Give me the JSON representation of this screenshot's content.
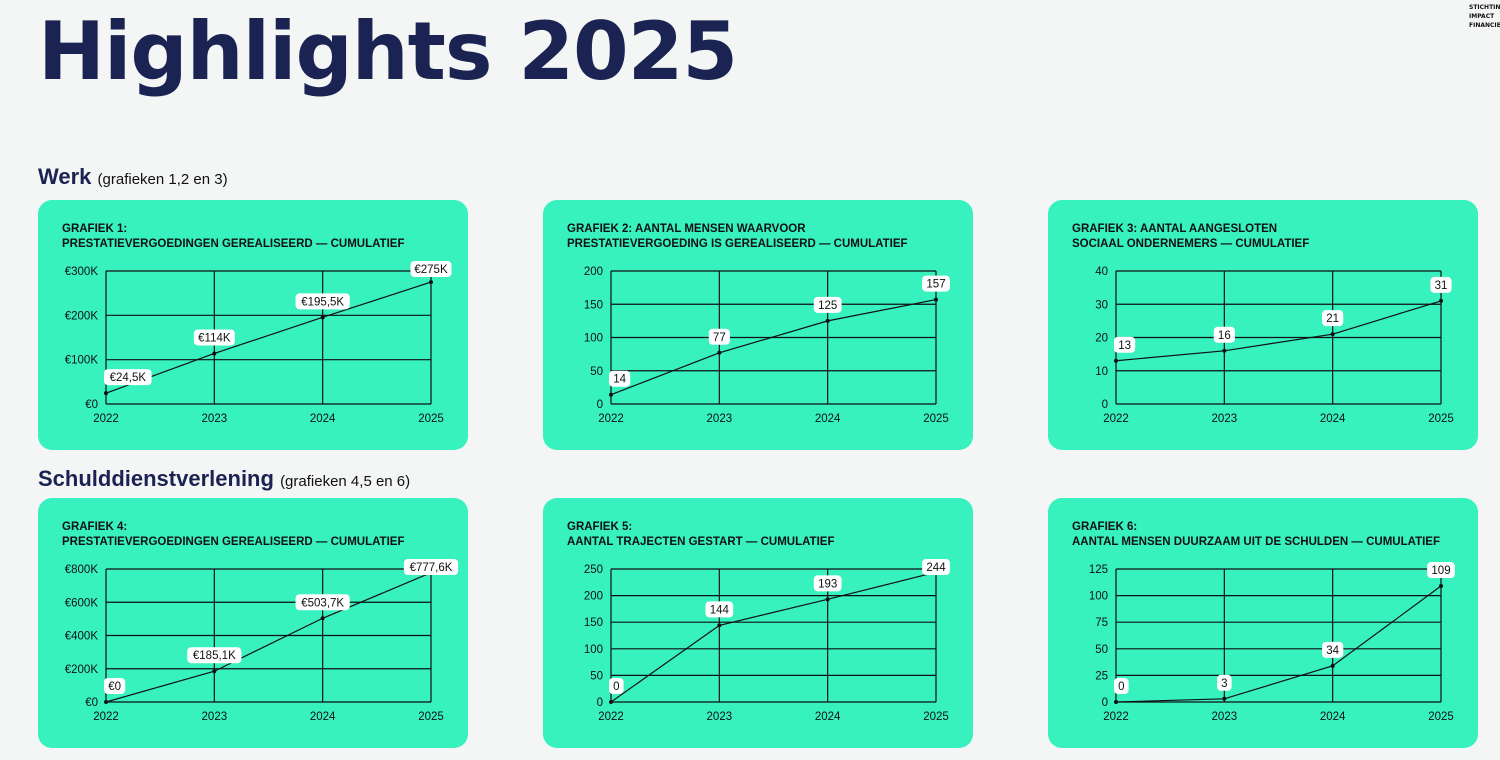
{
  "page": {
    "title": "Highlights 2025",
    "logo_lines": [
      "STICHTIN",
      "IMPACT",
      "FINANCIE"
    ]
  },
  "sections": [
    {
      "title": "Werk",
      "subtitle": "(grafieken 1,2 en 3)"
    },
    {
      "title": "Schulddienstverlening",
      "subtitle": "(grafieken 4,5 en 6)"
    }
  ],
  "chart_data": [
    {
      "type": "line",
      "title_lines": [
        "GRAFIEK 1:",
        "PRESTATIEVERGOEDINGEN GEREALISEERD — CUMULATIEF"
      ],
      "categories": [
        "2022",
        "2023",
        "2024",
        "2025"
      ],
      "values": [
        24.5,
        114,
        195.5,
        275
      ],
      "data_labels": [
        "€24,5K",
        "€114K",
        "€195,5K",
        "€275K"
      ],
      "y_ticks": [
        0,
        100,
        200,
        300
      ],
      "y_tick_labels": [
        "€0",
        "€100K",
        "€200K",
        "€300K"
      ],
      "ylim": [
        0,
        300
      ],
      "grid": true
    },
    {
      "type": "line",
      "title_lines": [
        "GRAFIEK 2: AANTAL MENSEN WAARVOOR",
        "PRESTATIEVERGOEDING IS GEREALISEERD — CUMULATIEF"
      ],
      "categories": [
        "2022",
        "2023",
        "2024",
        "2025"
      ],
      "values": [
        14,
        77,
        125,
        157
      ],
      "data_labels": [
        "14",
        "77",
        "125",
        "157"
      ],
      "y_ticks": [
        0,
        50,
        100,
        150,
        200
      ],
      "y_tick_labels": [
        "0",
        "50",
        "100",
        "150",
        "200"
      ],
      "ylim": [
        0,
        200
      ],
      "grid": true
    },
    {
      "type": "line",
      "title_lines": [
        "GRAFIEK 3: AANTAL AANGESLOTEN",
        "SOCIAAL ONDERNEMERS — CUMULATIEF"
      ],
      "categories": [
        "2022",
        "2023",
        "2024",
        "2025"
      ],
      "values": [
        13,
        16,
        21,
        31
      ],
      "data_labels": [
        "13",
        "16",
        "21",
        "31"
      ],
      "y_ticks": [
        0,
        10,
        20,
        30,
        40
      ],
      "y_tick_labels": [
        "0",
        "10",
        "20",
        "30",
        "40"
      ],
      "ylim": [
        0,
        40
      ],
      "grid": true
    },
    {
      "type": "line",
      "title_lines": [
        "GRAFIEK 4:",
        "PRESTATIEVERGOEDINGEN GEREALISEERD — CUMULATIEF"
      ],
      "categories": [
        "2022",
        "2023",
        "2024",
        "2025"
      ],
      "values": [
        0,
        185.1,
        503.7,
        777.6
      ],
      "data_labels": [
        "€0",
        "€185,1K",
        "€503,7K",
        "€777,6K"
      ],
      "y_ticks": [
        0,
        200,
        400,
        600,
        800
      ],
      "y_tick_labels": [
        "€0",
        "€200K",
        "€400K",
        "€600K",
        "€800K"
      ],
      "ylim": [
        0,
        800
      ],
      "grid": true
    },
    {
      "type": "line",
      "title_lines": [
        "GRAFIEK 5:",
        "AANTAL TRAJECTEN GESTART — CUMULATIEF"
      ],
      "categories": [
        "2022",
        "2023",
        "2024",
        "2025"
      ],
      "values": [
        0,
        144,
        193,
        244
      ],
      "data_labels": [
        "0",
        "144",
        "193",
        "244"
      ],
      "y_ticks": [
        0,
        50,
        100,
        150,
        200,
        250
      ],
      "y_tick_labels": [
        "0",
        "50",
        "100",
        "150",
        "200",
        "250"
      ],
      "ylim": [
        0,
        250
      ],
      "grid": true
    },
    {
      "type": "line",
      "title_lines": [
        "GRAFIEK 6:",
        "AANTAL MENSEN DUURZAAM UIT DE SCHULDEN — CUMULATIEF"
      ],
      "categories": [
        "2022",
        "2023",
        "2024",
        "2025"
      ],
      "values": [
        0,
        3,
        34,
        109
      ],
      "data_labels": [
        "0",
        "3",
        "34",
        "109"
      ],
      "y_ticks": [
        0,
        25,
        50,
        75,
        100,
        125
      ],
      "y_tick_labels": [
        "0",
        "25",
        "50",
        "75",
        "100",
        "125"
      ],
      "ylim": [
        0,
        125
      ],
      "grid": true
    }
  ],
  "colors": {
    "background": "#f4f6f5",
    "card": "#37f1bf",
    "title": "#1a2352",
    "line": "#111111",
    "label_bg": "#ffffff"
  }
}
